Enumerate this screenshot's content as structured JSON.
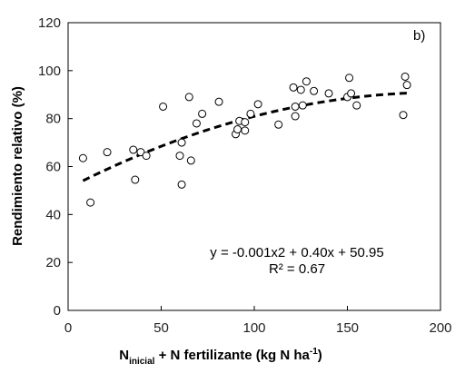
{
  "chart_data": {
    "type": "scatter",
    "panel_label": "b)",
    "xlabel": {
      "main": "N",
      "sub": "inicial",
      "rest": " + N fertilizante (kg N ha",
      "sup": "-1",
      "close": ")"
    },
    "ylabel": "Rendimiento relativo (%)",
    "xlim": [
      0,
      200
    ],
    "ylim": [
      0,
      120
    ],
    "xticks": [
      "0",
      "50",
      "100",
      "150",
      "200"
    ],
    "yticks": [
      "0",
      "20",
      "40",
      "60",
      "80",
      "100",
      "120"
    ],
    "grid": false,
    "points": [
      {
        "x": 8,
        "y": 63.5
      },
      {
        "x": 12,
        "y": 45.0
      },
      {
        "x": 21,
        "y": 66.0
      },
      {
        "x": 35,
        "y": 67.0
      },
      {
        "x": 36,
        "y": 54.5
      },
      {
        "x": 39,
        "y": 66.0
      },
      {
        "x": 42,
        "y": 64.5
      },
      {
        "x": 51,
        "y": 85.0
      },
      {
        "x": 60,
        "y": 64.5
      },
      {
        "x": 61,
        "y": 52.5
      },
      {
        "x": 61,
        "y": 70.0
      },
      {
        "x": 65,
        "y": 89.0
      },
      {
        "x": 66,
        "y": 62.5
      },
      {
        "x": 69,
        "y": 78.0
      },
      {
        "x": 72,
        "y": 82.0
      },
      {
        "x": 81,
        "y": 87.0
      },
      {
        "x": 90,
        "y": 73.5
      },
      {
        "x": 91,
        "y": 75.5
      },
      {
        "x": 92,
        "y": 79.0
      },
      {
        "x": 95,
        "y": 75.0
      },
      {
        "x": 95,
        "y": 78.5
      },
      {
        "x": 98,
        "y": 82.0
      },
      {
        "x": 102,
        "y": 86.0
      },
      {
        "x": 113,
        "y": 77.5
      },
      {
        "x": 121,
        "y": 93.0
      },
      {
        "x": 122,
        "y": 81.0
      },
      {
        "x": 122,
        "y": 85.0
      },
      {
        "x": 125,
        "y": 92.0
      },
      {
        "x": 126,
        "y": 85.5
      },
      {
        "x": 128,
        "y": 95.5
      },
      {
        "x": 132,
        "y": 91.5
      },
      {
        "x": 140,
        "y": 90.5
      },
      {
        "x": 150,
        "y": 89.0
      },
      {
        "x": 151,
        "y": 97.0
      },
      {
        "x": 152,
        "y": 90.5
      },
      {
        "x": 155,
        "y": 85.5
      },
      {
        "x": 180,
        "y": 81.5
      },
      {
        "x": 181,
        "y": 97.5
      },
      {
        "x": 182,
        "y": 94.0
      }
    ],
    "trendline": {
      "type": "quadratic",
      "coefficients": [
        -0.001,
        0.4,
        50.95
      ],
      "x_range": [
        8,
        182
      ],
      "style": "dashed"
    },
    "annotations": {
      "equation": "y = -0.001x2 + 0.40x + 50.95",
      "r2": "R² = 0.67"
    }
  }
}
